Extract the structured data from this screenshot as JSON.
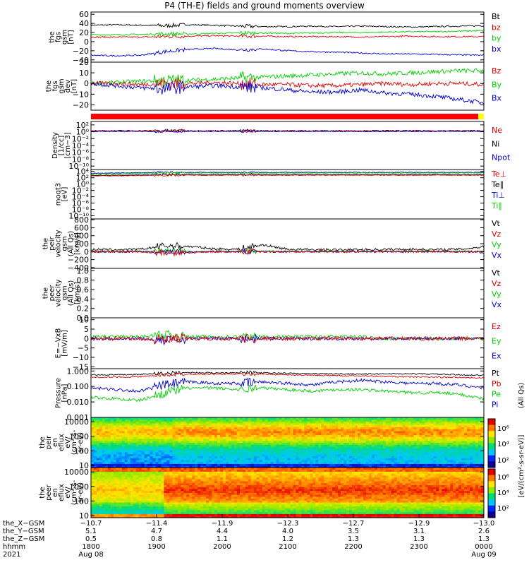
{
  "title": "P4 (TH-E) fields and ground moments overview",
  "colors": {
    "black": "#000000",
    "red": "#e00000",
    "green": "#00d000",
    "blue": "#0000d0",
    "yellow": "#ffff00"
  },
  "panels": [
    {
      "id": "fgs-gsm",
      "ylabel": [
        "the",
        "fgs",
        "gsm",
        "[nT]"
      ],
      "ticks": [
        "60",
        "40",
        "20",
        "0",
        "−20",
        "−40"
      ],
      "tick_values": [
        60,
        40,
        20,
        0,
        -20,
        -40
      ],
      "ylim": [
        -45,
        65
      ],
      "legend": [
        {
          "label": "Bt",
          "color": "black"
        },
        {
          "label": "bz",
          "color": "red"
        },
        {
          "label": "by",
          "color": "green"
        },
        {
          "label": "bx",
          "color": "blue"
        }
      ],
      "series": [
        {
          "name": "Bt",
          "color": "black",
          "base": [
            36,
            37,
            36,
            35,
            37,
            36,
            34,
            33,
            33,
            34,
            33,
            34,
            33,
            32,
            33,
            34,
            35
          ],
          "noise": 1.5
        },
        {
          "name": "bz",
          "color": "red",
          "base": [
            10,
            10,
            10,
            11,
            12,
            13,
            12,
            12,
            11,
            11,
            11,
            10,
            11,
            12,
            11,
            11,
            11
          ],
          "noise": 1.5
        },
        {
          "name": "by",
          "color": "green",
          "base": [
            15,
            15,
            16,
            17,
            17,
            18,
            19,
            19,
            18,
            19,
            20,
            20,
            21,
            22,
            22,
            23,
            24
          ],
          "noise": 1.5
        },
        {
          "name": "bx",
          "color": "blue",
          "base": [
            -30,
            -31,
            -30,
            -22,
            -17,
            -15,
            -18,
            -16,
            -20,
            -22,
            -23,
            -25,
            -27,
            -27,
            -28,
            -29,
            -30
          ],
          "noise": 1.5
        }
      ]
    },
    {
      "id": "fgs-gsm-dev",
      "ylabel": [
        "the",
        "fgs",
        "gsm",
        "dev",
        "[nT]"
      ],
      "ticks": [
        "20",
        "10",
        "0",
        "−10",
        "−20"
      ],
      "tick_values": [
        20,
        10,
        0,
        -10,
        -20
      ],
      "ylim": [
        -25,
        20
      ],
      "legend": [
        {
          "label": "Bz",
          "color": "red"
        },
        {
          "label": "By",
          "color": "green"
        },
        {
          "label": "Bx",
          "color": "blue"
        }
      ],
      "series": [
        {
          "name": "By",
          "color": "green",
          "base": [
            0,
            1,
            2,
            3,
            3,
            4,
            5,
            6,
            7,
            8,
            9,
            10,
            9,
            10,
            11,
            12,
            12
          ],
          "noise": 2
        },
        {
          "name": "Bz",
          "color": "red",
          "base": [
            0,
            0,
            -1,
            0,
            0,
            1,
            0,
            -1,
            -1,
            -2,
            -2,
            -1,
            0,
            -1,
            0,
            0,
            -1
          ],
          "noise": 2
        },
        {
          "name": "Bx",
          "color": "blue",
          "base": [
            0,
            -2,
            -4,
            -5,
            -3,
            -2,
            -3,
            -4,
            -6,
            -8,
            -8,
            -6,
            -9,
            -10,
            -12,
            -15,
            -18
          ],
          "noise": 2
        }
      ]
    },
    {
      "id": "status-bar"
    },
    {
      "id": "density",
      "ylabel": [
        "Density",
        "[1/cc]",
        "[cm−3]"
      ],
      "ticks": [
        "10²",
        "10⁰",
        "10⁻²",
        "10⁻⁴",
        "10⁻⁶",
        "10⁻⁸",
        "10⁻¹⁰"
      ],
      "tick_values": [
        2,
        0,
        -2,
        -4,
        -6,
        -8,
        -10
      ],
      "ylim": [
        -11,
        3
      ],
      "log": true,
      "legend": [
        {
          "label": "Ne",
          "color": "red"
        },
        {
          "label": "Ni",
          "color": "black"
        },
        {
          "label": "Npot",
          "color": "blue"
        }
      ],
      "series": [
        {
          "name": "Ni",
          "color": "black",
          "base": [
            0.3,
            0.3,
            0.3,
            0.3,
            0.3,
            0.3,
            0.3,
            0.3,
            0.3,
            0.3,
            0.3,
            0.3,
            0.3,
            0.3,
            0.3,
            0.3,
            0.3
          ],
          "noise": 0.15
        },
        {
          "name": "Ne",
          "color": "red",
          "base": [
            0.2,
            0.2,
            0.2,
            0.2,
            0.2,
            0.2,
            0.2,
            0.2,
            0.2,
            0.2,
            0.2,
            0.2,
            0.2,
            0.2,
            0.2,
            0.2,
            0.2
          ],
          "noise": 0.15
        },
        {
          "name": "Npot",
          "color": "blue",
          "base": [
            0.1,
            0.1,
            0.1,
            0.1,
            0.1,
            0.1,
            0.1,
            0.1,
            0.1,
            0.1,
            0.1,
            0.1,
            0.1,
            0.1,
            0.1,
            0.1,
            0.1
          ],
          "noise": 0.1
        }
      ]
    },
    {
      "id": "moqt3",
      "ylabel": [
        "moqt3",
        "[eV]"
      ],
      "ticks": [
        "10⁴",
        "10²",
        "10⁰",
        "10⁻²",
        "10⁻⁴",
        "10⁻⁶",
        "10⁻⁸",
        "10⁻¹⁰"
      ],
      "tick_values": [
        4,
        2,
        0,
        -2,
        -4,
        -6,
        -8,
        -10
      ],
      "ylim": [
        -11,
        4.6
      ],
      "log": true,
      "legend": [
        {
          "label": "Te⊥",
          "color": "red"
        },
        {
          "label": "Te∥",
          "color": "black"
        },
        {
          "label": "Ti⊥",
          "color": "blue"
        },
        {
          "label": "Ti∥",
          "color": "green"
        }
      ],
      "series": [
        {
          "name": "Ti⊥",
          "color": "blue",
          "base": [
            3.4,
            3.5,
            3.6,
            3.7,
            3.7,
            3.7,
            3.7,
            3.7,
            3.7,
            3.7,
            3.7,
            3.7,
            3.7,
            3.7,
            3.7,
            3.7,
            3.7
          ],
          "noise": 0.1
        },
        {
          "name": "Ti∥",
          "color": "green",
          "base": [
            3.2,
            3.3,
            3.4,
            3.5,
            3.5,
            3.5,
            3.5,
            3.5,
            3.5,
            3.5,
            3.5,
            3.5,
            3.5,
            3.5,
            3.5,
            3.5,
            3.5
          ],
          "noise": 0.1
        },
        {
          "name": "Te∥",
          "color": "black",
          "base": [
            2.8,
            2.8,
            2.9,
            3.0,
            3.0,
            3.0,
            3.0,
            3.0,
            3.0,
            3.0,
            3.0,
            3.0,
            3.0,
            3.0,
            3.0,
            3.0,
            3.0
          ],
          "noise": 0.1
        },
        {
          "name": "Te⊥",
          "color": "red",
          "base": [
            2.6,
            2.6,
            2.7,
            2.8,
            2.8,
            2.8,
            2.8,
            2.8,
            2.8,
            2.8,
            2.8,
            2.8,
            2.8,
            2.8,
            2.8,
            2.8,
            2.8
          ],
          "noise": 0.1
        }
      ]
    },
    {
      "id": "peir-velocity",
      "ylabel": [
        "the",
        "peir",
        "velocity",
        "gsm",
        "(All Qs)",
        "[km/s]"
      ],
      "ticks": [
        "800",
        "600",
        "400",
        "200",
        "0",
        "−200",
        "−400"
      ],
      "tick_values": [
        800,
        600,
        400,
        200,
        0,
        -200,
        -400
      ],
      "ylim": [
        -420,
        820
      ],
      "legend": [
        {
          "label": "Vt",
          "color": "black"
        },
        {
          "label": "Vz",
          "color": "red"
        },
        {
          "label": "Vy",
          "color": "green"
        },
        {
          "label": "Vx",
          "color": "blue"
        }
      ],
      "series": [
        {
          "name": "Vt",
          "color": "black",
          "base": [
            50,
            50,
            55,
            150,
            130,
            70,
            60,
            170,
            60,
            50,
            45,
            50,
            55,
            60,
            50,
            60,
            120
          ],
          "noise": 30
        },
        {
          "name": "Vy",
          "color": "green",
          "base": [
            5,
            5,
            5,
            10,
            0,
            5,
            5,
            10,
            5,
            5,
            5,
            5,
            5,
            5,
            5,
            5,
            10
          ],
          "noise": 25
        },
        {
          "name": "Vx",
          "color": "blue",
          "base": [
            -5,
            -5,
            0,
            -10,
            -10,
            0,
            0,
            -5,
            0,
            0,
            0,
            0,
            0,
            0,
            0,
            0,
            -20
          ],
          "noise": 20
        },
        {
          "name": "Vz",
          "color": "red",
          "base": [
            0,
            0,
            0,
            -40,
            -30,
            0,
            0,
            0,
            0,
            0,
            0,
            0,
            0,
            0,
            0,
            0,
            0
          ],
          "noise": 25
        }
      ]
    },
    {
      "id": "peer-velocity",
      "ylabel": [
        "the",
        "peer",
        "velocity",
        "gsm",
        "(All Qs)",
        "[km/s]"
      ],
      "ticks": [
        "1.0",
        "0.8",
        "0.6",
        "0.4",
        "0.2",
        "0.0"
      ],
      "tick_values": [
        1.0,
        0.8,
        0.6,
        0.4,
        0.2,
        0.0
      ],
      "ylim": [
        0,
        1.05
      ],
      "legend": [
        {
          "label": "Vt",
          "color": "black"
        },
        {
          "label": "Vz",
          "color": "red"
        },
        {
          "label": "Vy",
          "color": "green"
        },
        {
          "label": "Vx",
          "color": "blue"
        }
      ],
      "series": []
    },
    {
      "id": "efield",
      "ylabel": [
        "E=−VxB",
        "[mV/m]"
      ],
      "ticks": [
        "10",
        "5",
        "0",
        "−5",
        "−10",
        "−15"
      ],
      "tick_values": [
        10,
        5,
        0,
        -5,
        -10,
        -15
      ],
      "ylim": [
        -16,
        11
      ],
      "legend": [
        {
          "label": "Ez",
          "color": "red"
        },
        {
          "label": "Ey",
          "color": "green"
        },
        {
          "label": "Ex",
          "color": "blue"
        }
      ],
      "series": [
        {
          "name": "Ey",
          "color": "green",
          "base": [
            1,
            1,
            1,
            2,
            1,
            1,
            1,
            1,
            1,
            1,
            1,
            1,
            0,
            0,
            0,
            0,
            0
          ],
          "noise": 0.8
        },
        {
          "name": "Ex",
          "color": "blue",
          "base": [
            0,
            0,
            0,
            -1,
            0,
            0,
            0,
            0,
            0,
            0,
            0,
            0,
            0,
            0,
            0,
            0,
            0
          ],
          "noise": 0.8
        },
        {
          "name": "Ez",
          "color": "red",
          "base": [
            0,
            0,
            0,
            -1,
            0,
            0,
            0,
            0,
            0,
            0,
            0,
            0,
            0,
            0,
            0,
            0,
            0
          ],
          "noise": 1
        }
      ]
    },
    {
      "id": "pressure",
      "ylabel": [
        "Pressure",
        "[nPa]"
      ],
      "ticks": [
        "1.000",
        "0.100",
        "0.010",
        "0.001"
      ],
      "tick_values": [
        0,
        -1,
        -2,
        -3
      ],
      "ylim": [
        -3,
        0.15
      ],
      "log": true,
      "legend": [
        {
          "label": "Pt",
          "color": "black"
        },
        {
          "label": "Pb",
          "color": "red"
        },
        {
          "label": "Pe",
          "color": "green"
        },
        {
          "label": "Pi",
          "color": "blue"
        }
      ],
      "series": [
        {
          "name": "Pt",
          "color": "black",
          "base": [
            -0.25,
            -0.25,
            -0.22,
            -0.15,
            -0.1,
            -0.12,
            -0.1,
            -0.12,
            -0.15,
            -0.18,
            -0.18,
            -0.2,
            -0.18,
            -0.18,
            -0.2,
            -0.25,
            -0.28
          ],
          "noise": 0.04
        },
        {
          "name": "Pb",
          "color": "red",
          "base": [
            -0.4,
            -0.4,
            -0.38,
            -0.25,
            -0.2,
            -0.2,
            -0.2,
            -0.2,
            -0.25,
            -0.28,
            -0.3,
            -0.32,
            -0.35,
            -0.38,
            -0.4,
            -0.42,
            -0.45
          ],
          "noise": 0.04
        },
        {
          "name": "Pi",
          "color": "blue",
          "base": [
            -1.1,
            -1.2,
            -1.3,
            -0.9,
            -0.7,
            -0.8,
            -0.8,
            -0.7,
            -0.8,
            -0.9,
            -0.7,
            -0.6,
            -0.7,
            -0.8,
            -0.8,
            -0.9,
            -1.1
          ],
          "noise": 0.1
        },
        {
          "name": "Pe",
          "color": "green",
          "base": [
            -1.7,
            -1.8,
            -1.9,
            -1.4,
            -1.1,
            -1.1,
            -1.2,
            -1.1,
            -1.2,
            -1.3,
            -1.2,
            -1.2,
            -1.3,
            -1.4,
            -1.4,
            -1.5,
            -1.8
          ],
          "noise": 0.1
        }
      ]
    },
    {
      "id": "peir-eflux",
      "ylabel": [
        "the",
        "peir",
        "en",
        "eflux",
        "eV/",
        "(cm²-s-",
        "sr-eV)"
      ],
      "ticks": [
        "10000",
        "1000",
        "100",
        "10"
      ],
      "tick_values": [
        4,
        3,
        2,
        1
      ],
      "ylim": [
        0.85,
        4.3
      ],
      "log": true,
      "spectrogram": "ion"
    },
    {
      "id": "peer-eflux",
      "ylabel": [
        "the",
        "peer",
        "en",
        "eflux",
        "eV/",
        "(cm²-s-",
        "sr-eV)"
      ],
      "ticks": [
        "10000",
        "1000",
        "100",
        "10"
      ],
      "tick_values": [
        4,
        3,
        2,
        1
      ],
      "ylim": [
        0.85,
        4.3
      ],
      "log": true,
      "spectrogram": "electron"
    }
  ],
  "colorbar": {
    "ticks": [
      "10⁶",
      "10⁴",
      "10²",
      "10⁶",
      "10⁴",
      "10²"
    ],
    "label": "[eV/(cm²-s-sr-eV)]",
    "label2": "(All Qs)"
  },
  "xaxis": {
    "rows": [
      {
        "label": "the_X−GSM",
        "values": [
          "−10.7",
          "−11.4",
          "−11.9",
          "−12.3",
          "−12.7",
          "−12.9",
          "−13.0"
        ]
      },
      {
        "label": "the_Y−GSM",
        "values": [
          "5.1",
          "4.7",
          "4.4",
          "4.0",
          "3.5",
          "3.1",
          "2.6"
        ]
      },
      {
        "label": "the_Z−GSM",
        "values": [
          "0.5",
          "0.8",
          "1.1",
          "1.2",
          "1.3",
          "1.3",
          "1.3"
        ]
      },
      {
        "label": "hhmm",
        "values": [
          "1800",
          "1900",
          "2000",
          "2100",
          "2200",
          "2300",
          "0000"
        ]
      },
      {
        "label": "2021",
        "values": [
          "Aug 08",
          "",
          "",
          "",
          "",
          "",
          "Aug 09"
        ]
      }
    ]
  },
  "chart_data": {
    "type": "line",
    "title": "P4 (TH-E) fields and ground moments overview",
    "x": [
      "1800",
      "1900",
      "2000",
      "2100",
      "2200",
      "2300",
      "0000"
    ],
    "x_dates": [
      "Aug 08",
      "Aug 09"
    ],
    "xlim": [
      "2021-08-08 17:45",
      "2021-08-09 00:05"
    ],
    "series_summary": [
      {
        "panel": "fgs-gsm",
        "name": "Bt",
        "approx": "~33-37 nT"
      },
      {
        "panel": "fgs-gsm",
        "name": "bz",
        "approx": "~10-12 nT"
      },
      {
        "panel": "fgs-gsm",
        "name": "by",
        "approx": "~15-24 nT"
      },
      {
        "panel": "fgs-gsm",
        "name": "bx",
        "approx": "~-30 to -15 nT"
      }
    ]
  }
}
